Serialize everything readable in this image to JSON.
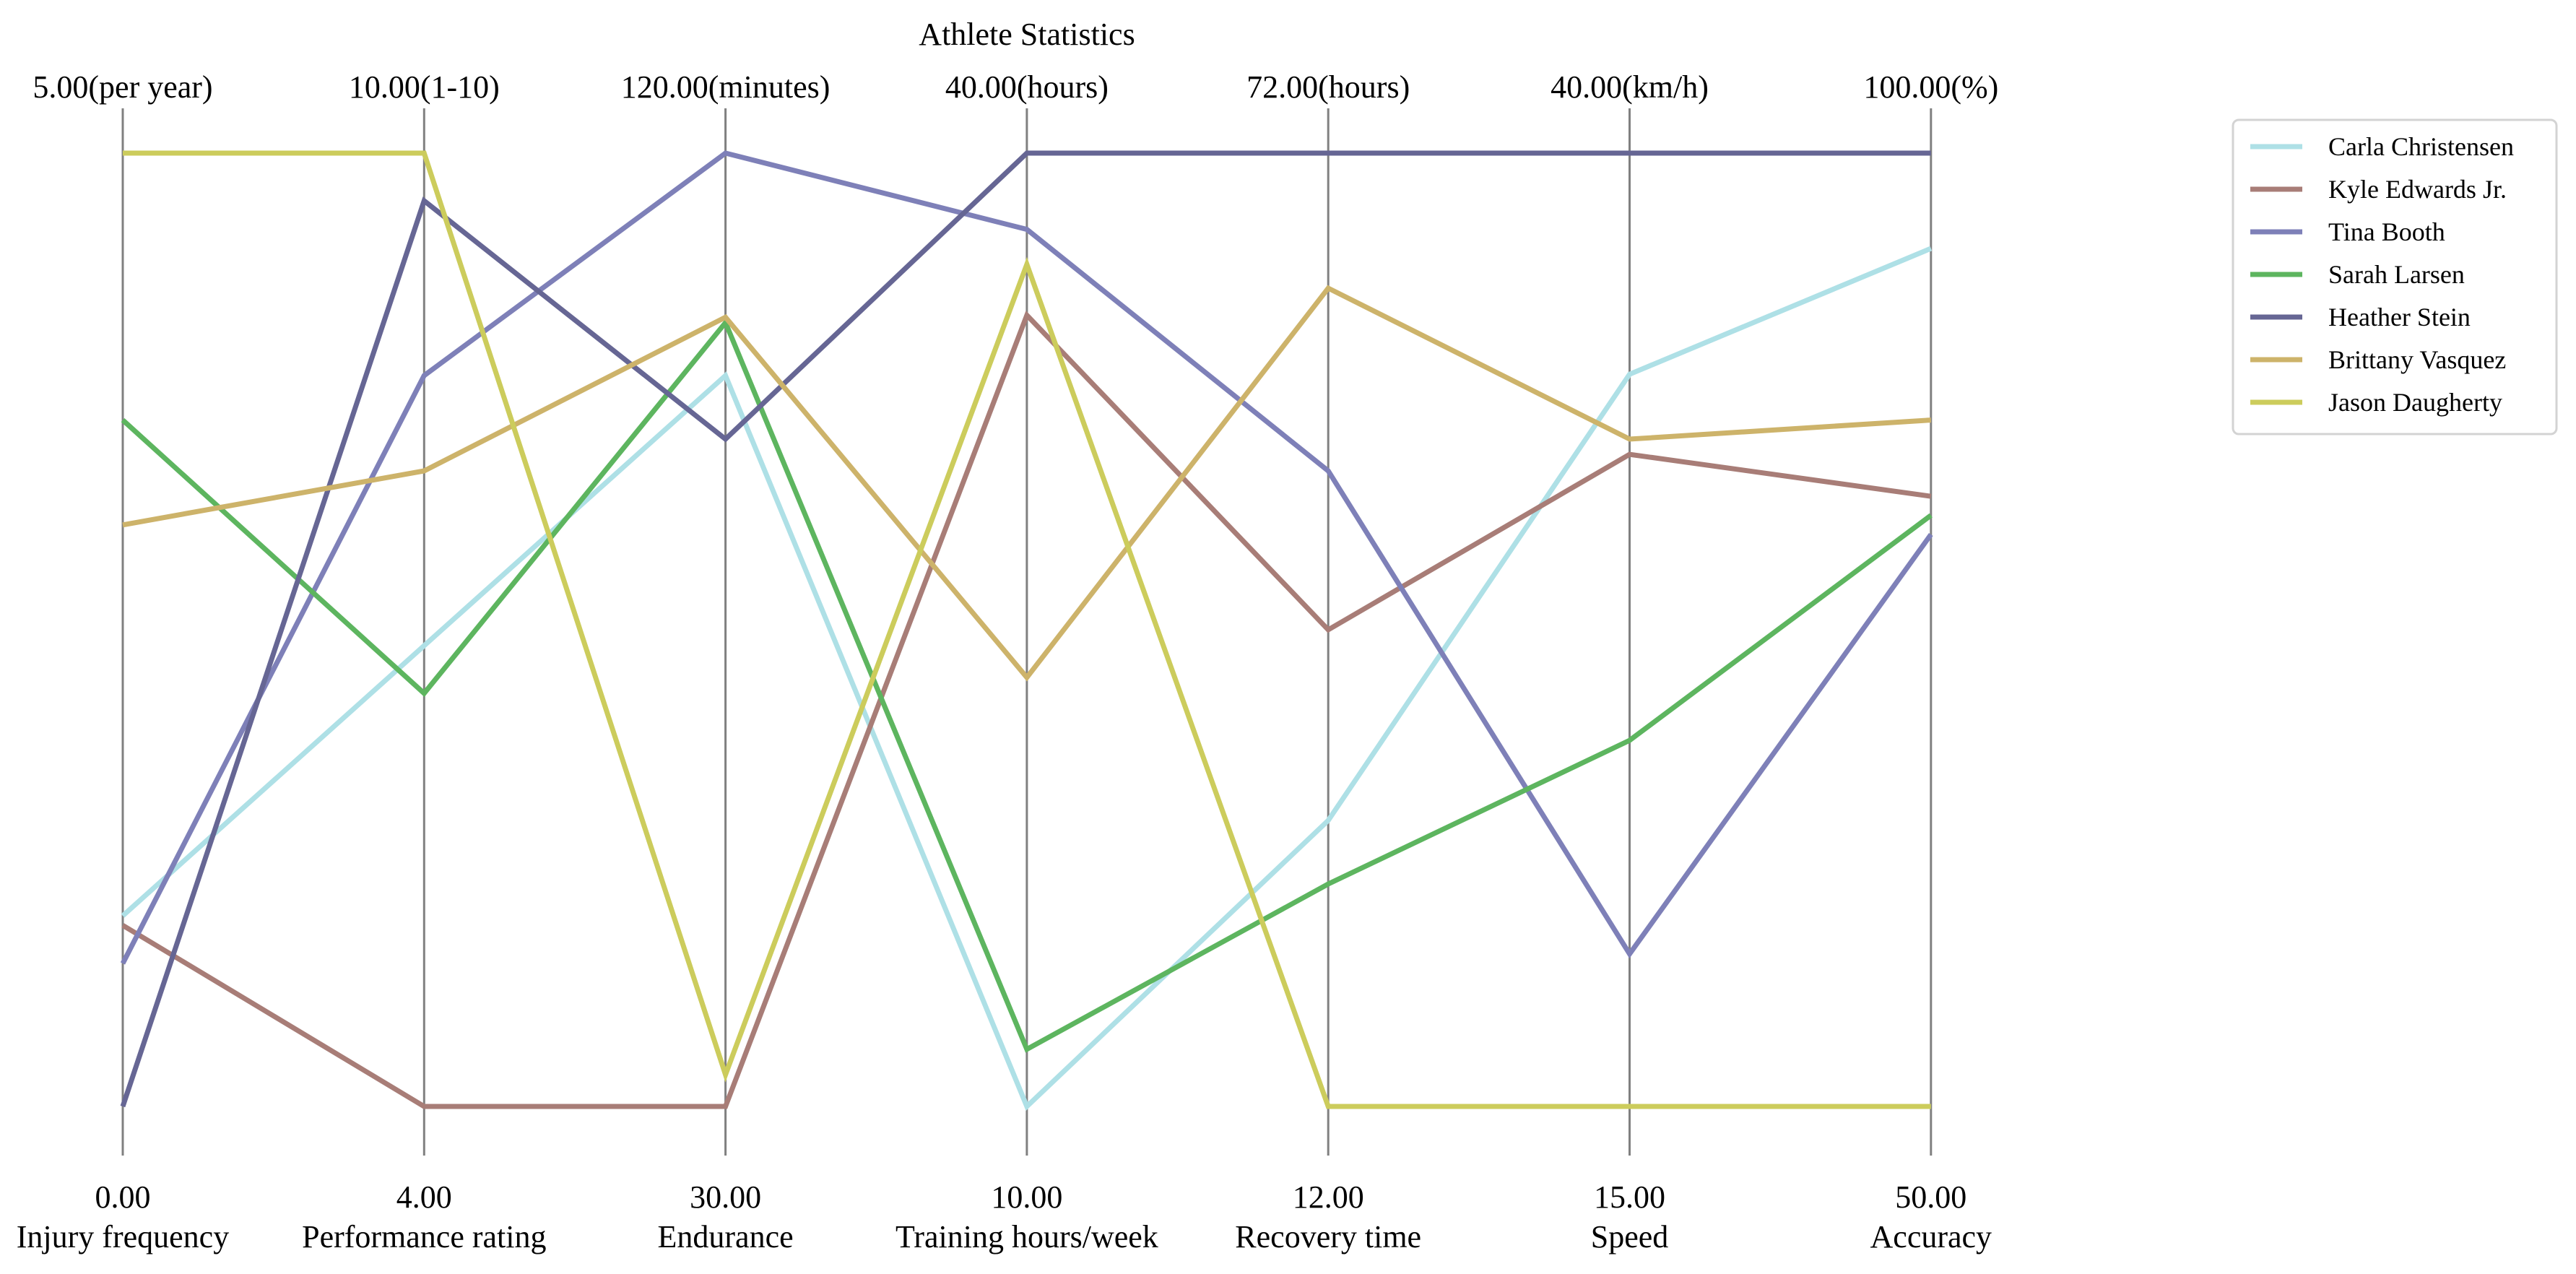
{
  "chart_data": {
    "type": "parallel-coordinates",
    "title": "Athlete Statistics",
    "axes": [
      {
        "label": "Injury frequency",
        "min": 0,
        "max": 5,
        "min_label": "0.00",
        "max_label": "5.00(per year)"
      },
      {
        "label": "Performance rating",
        "min": 4,
        "max": 10,
        "min_label": "4.00",
        "max_label": "10.00(1-10)"
      },
      {
        "label": "Endurance",
        "min": 30,
        "max": 120,
        "min_label": "30.00",
        "max_label": "120.00(minutes)"
      },
      {
        "label": "Training hours/week",
        "min": 10,
        "max": 40,
        "min_label": "10.00",
        "max_label": "40.00(hours)"
      },
      {
        "label": "Recovery time",
        "min": 12,
        "max": 72,
        "min_label": "12.00",
        "max_label": "72.00(hours)"
      },
      {
        "label": "Speed",
        "min": 15,
        "max": 40,
        "min_label": "15.00",
        "max_label": "40.00(km/h)"
      },
      {
        "label": "Accuracy",
        "min": 50,
        "max": 100,
        "min_label": "50.00",
        "max_label": "100.00(%)"
      }
    ],
    "series": [
      {
        "name": "Carla Christensen",
        "color": "#aee0e6",
        "values": [
          1.0,
          6.9,
          99.0,
          10.0,
          30.0,
          34.2,
          95.0
        ]
      },
      {
        "name": "Kyle Edwards Jr.",
        "color": "#a87d77",
        "values": [
          0.95,
          4.0,
          30.0,
          34.9,
          42.0,
          32.1,
          82.0
        ]
      },
      {
        "name": "Tina Booth",
        "color": "#7e80b8",
        "values": [
          0.75,
          8.6,
          120.0,
          37.6,
          52.0,
          19.0,
          80.0
        ]
      },
      {
        "name": "Sarah Larsen",
        "color": "#5db55f",
        "values": [
          3.6,
          6.6,
          104.0,
          11.8,
          26.0,
          24.6,
          81.0
        ]
      },
      {
        "name": "Heather Stein",
        "color": "#666694",
        "values": [
          0.0,
          9.7,
          93.0,
          40.0,
          72.0,
          40.0,
          100.0
        ]
      },
      {
        "name": "Brittany Vasquez",
        "color": "#cdb36a",
        "values": [
          3.05,
          8.0,
          104.5,
          23.5,
          63.5,
          32.5,
          86.0
        ]
      },
      {
        "name": "Jason Daugherty",
        "color": "#cccc5c",
        "values": [
          5.0,
          10.0,
          33.0,
          36.5,
          12.0,
          15.0,
          50.0
        ]
      }
    ],
    "legend_position": "top-right",
    "grid": false
  }
}
